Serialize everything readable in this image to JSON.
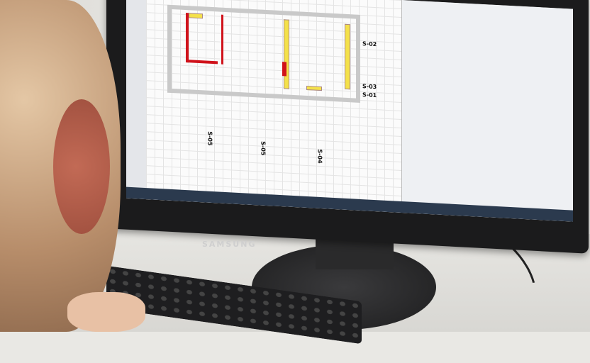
{
  "scene": {
    "monitor_brand": "SAMSUNG",
    "screen_labels": [
      "S-02",
      "S-03",
      "S-01",
      "S-05",
      "S-05",
      "S-04"
    ]
  }
}
